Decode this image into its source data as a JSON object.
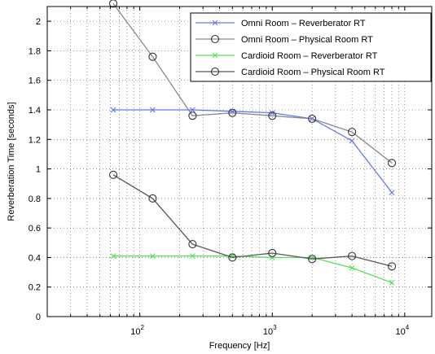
{
  "chart_data": {
    "type": "line",
    "xlabel": "Frequency [Hz]",
    "ylabel": "Reverberation Time [seconds]",
    "xscale": "log",
    "xlim": [
      20,
      16000
    ],
    "ylim": [
      0,
      2.1
    ],
    "grid": true,
    "legend_position": "top-right",
    "x_ticks": [
      {
        "value": 100,
        "base": "10",
        "exp": "2"
      },
      {
        "value": 1000,
        "base": "10",
        "exp": "3"
      },
      {
        "value": 10000,
        "base": "10",
        "exp": "4"
      }
    ],
    "y_ticks": [
      0,
      0.2,
      0.4,
      0.6,
      0.8,
      1,
      1.2,
      1.4,
      1.6,
      1.8,
      2
    ],
    "x": [
      63,
      125,
      250,
      500,
      1000,
      2000,
      4000,
      8000
    ],
    "series": [
      {
        "name": "Omni Room – Reverberator RT",
        "color": "#6677ee",
        "marker": "x",
        "values": [
          1.4,
          1.4,
          1.4,
          1.39,
          1.38,
          1.34,
          1.19,
          0.84
        ]
      },
      {
        "name": "Omni Room – Physical Room RT",
        "color": "#8a8a8a",
        "marker": "o",
        "values": [
          2.12,
          1.76,
          1.36,
          1.38,
          1.36,
          1.34,
          1.25,
          1.04
        ]
      },
      {
        "name": "Cardioid Room – Reverberator RT",
        "color": "#55e055",
        "marker": "x",
        "values": [
          0.41,
          0.41,
          0.41,
          0.41,
          0.4,
          0.4,
          0.33,
          0.23
        ]
      },
      {
        "name": "Cardioid Room – Physical Room RT",
        "color": "#555555",
        "marker": "o",
        "values": [
          0.96,
          0.8,
          0.49,
          0.4,
          0.43,
          0.39,
          0.41,
          0.34
        ]
      }
    ]
  }
}
